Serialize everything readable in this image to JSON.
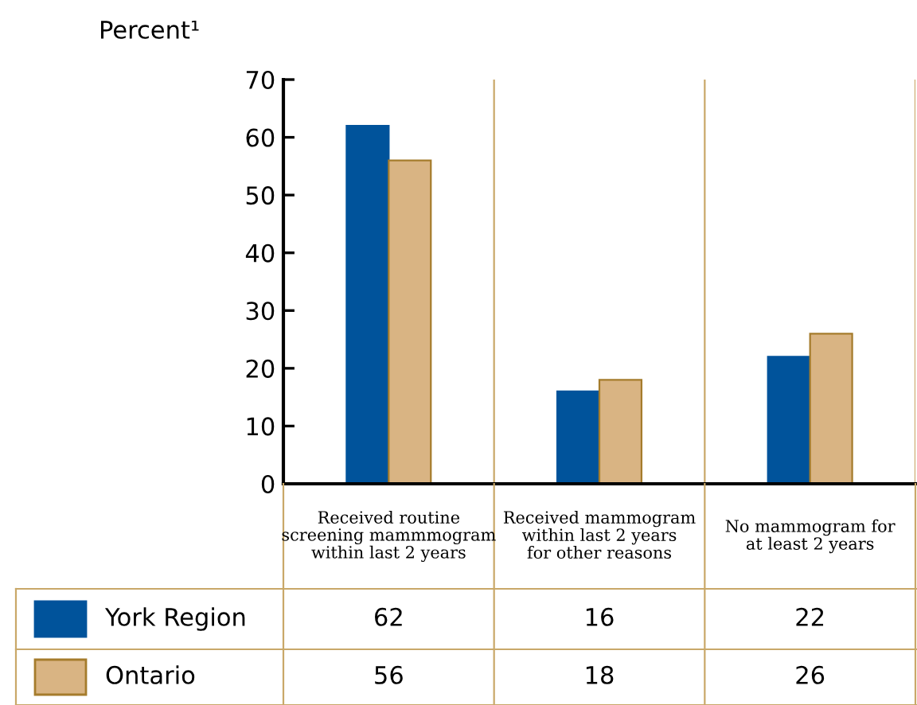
{
  "chart_data": {
    "type": "bar",
    "ylabel": "Percent¹",
    "categories": [
      "Received routine\nscreening mammmogram\nwithin last 2 years",
      "Received mammogram\nwithin last 2 years\nfor other reasons",
      "No mammogram for\nat least 2 years"
    ],
    "series": [
      {
        "name": "York Region",
        "color": "#00539b",
        "values": [
          62,
          16,
          22
        ]
      },
      {
        "name": "Ontario",
        "color": "#d9b483",
        "values": [
          56,
          18,
          26
        ]
      }
    ],
    "ylim": [
      0,
      70
    ],
    "yticks": [
      0,
      10,
      20,
      30,
      40,
      50,
      60,
      70
    ],
    "grid": "x",
    "legend": "bottom left",
    "data_labels": true
  }
}
